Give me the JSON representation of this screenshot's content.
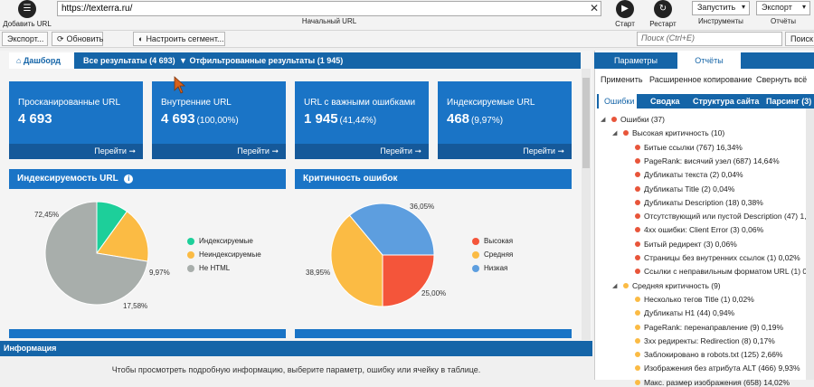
{
  "toolbar": {
    "add_url_label": "Добавить URL",
    "url_value": "https://texterra.ru/",
    "url_caption": "Начальный URL",
    "start_label": "Старт",
    "restart_label": "Рестарт",
    "run_value": "Запустить",
    "tools_caption": "Инструменты",
    "export_value": "Экспорт",
    "reports_caption": "Отчёты"
  },
  "toolbar2": {
    "export_label": "Экспорт...",
    "refresh_label": "Обновить",
    "segment_label": "Настроить сегмент...",
    "search_placeholder": "Поиск (Ctrl+E)",
    "search_right_label": "Поиск"
  },
  "tabs": [
    {
      "label": "Дашборд",
      "icon": "home-icon"
    },
    {
      "label": "Все результаты (4 693)"
    },
    {
      "label": "Отфильтрованные результаты (1 945)",
      "icon": "filter-icon"
    }
  ],
  "cards": [
    {
      "title": "Просканированные URL",
      "value": "4 693",
      "pct": "",
      "link": "Перейти ➞"
    },
    {
      "title": "Внутренние URL",
      "value": "4 693",
      "pct": "(100,00%)",
      "link": "Перейти ➞"
    },
    {
      "title": "URL с важными ошибками",
      "value": "1 945",
      "pct": "(41,44%)",
      "link": "Перейти ➞"
    },
    {
      "title": "Индексируемые URL",
      "value": "468",
      "pct": "(9,97%)",
      "link": "Перейти ➞"
    }
  ],
  "panels": {
    "indexability_title": "Индексируемость URL",
    "criticality_title": "Критичность ошибок"
  },
  "chart_data": [
    {
      "type": "pie",
      "title": "Индексируемость URL",
      "labels": [
        "Индексируемые",
        "Неиндексируемые",
        "Не HTML"
      ],
      "values": [
        9.97,
        17.58,
        72.45
      ],
      "value_labels": [
        "9,97%",
        "17,58%",
        "72,45%"
      ],
      "colors": [
        "#1dcf9a",
        "#fbbb44",
        "#a8aeab"
      ],
      "legend_position": "right"
    },
    {
      "type": "pie",
      "title": "Критичность ошибок",
      "labels": [
        "Высокая",
        "Средняя",
        "Низкая"
      ],
      "values": [
        25.0,
        38.95,
        36.05
      ],
      "value_labels": [
        "25,00%",
        "38,95%",
        "36,05%"
      ],
      "colors": [
        "#f4553a",
        "#fbbb44",
        "#5d9edf"
      ],
      "legend_position": "right"
    }
  ],
  "info": {
    "title": "Информация",
    "text": "Чтобы просмотреть подробную информацию, выберите параметр, ошибку или ячейку в таблице."
  },
  "right": {
    "tab_params": "Параметры",
    "tab_reports": "Отчёты",
    "action_apply": "Применить",
    "action_copy": "Расширенное копирование",
    "action_collapse": "Свернуть всё",
    "subtabs": [
      "Ошибки",
      "Сводка",
      "Структура сайта",
      "Парсинг (3)"
    ],
    "tree": [
      {
        "label": "Ошибки (37)",
        "level": 0,
        "color": "#e8553a",
        "twisty": "◢"
      },
      {
        "label": "Высокая критичность (10)",
        "level": 1,
        "color": "#e8553a",
        "twisty": "◢"
      },
      {
        "label": "Битые ссылки (767) 16,34%",
        "level": 2,
        "color": "#e8553a"
      },
      {
        "label": "PageRank: висячий узел (687) 14,64%",
        "level": 2,
        "color": "#e8553a"
      },
      {
        "label": "Дубликаты текста (2) 0,04%",
        "level": 2,
        "color": "#e8553a"
      },
      {
        "label": "Дубликаты Title (2) 0,04%",
        "level": 2,
        "color": "#e8553a"
      },
      {
        "label": "Дубликаты Description (18) 0,38%",
        "level": 2,
        "color": "#e8553a"
      },
      {
        "label": "Отсутствующий или пустой Description (47) 1,00%",
        "level": 2,
        "color": "#e8553a"
      },
      {
        "label": "4xx ошибки: Client Error (3) 0,06%",
        "level": 2,
        "color": "#e8553a"
      },
      {
        "label": "Битый редирект (3) 0,06%",
        "level": 2,
        "color": "#e8553a"
      },
      {
        "label": "Страницы без внутренних ссылок (1) 0,02%",
        "level": 2,
        "color": "#e8553a"
      },
      {
        "label": "Ссылки с неправильным форматом URL (1) 0,02%",
        "level": 2,
        "color": "#e8553a"
      },
      {
        "label": "Средняя критичность (9)",
        "level": 1,
        "color": "#fbbb44",
        "twisty": "◢"
      },
      {
        "label": "Несколько тегов Title (1) 0,02%",
        "level": 2,
        "color": "#fbbb44"
      },
      {
        "label": "Дубликаты H1 (44) 0,94%",
        "level": 2,
        "color": "#fbbb44"
      },
      {
        "label": "PageRank: перенаправление (9) 0,19%",
        "level": 2,
        "color": "#fbbb44"
      },
      {
        "label": "3xx редиректы: Redirection (8) 0,17%",
        "level": 2,
        "color": "#fbbb44"
      },
      {
        "label": "Заблокировано в robots.txt (125) 2,66%",
        "level": 2,
        "color": "#fbbb44"
      },
      {
        "label": "Изображения без атрибута ALT (466) 9,93%",
        "level": 2,
        "color": "#fbbb44"
      },
      {
        "label": "Макс. размер изображения (658) 14,02%",
        "level": 2,
        "color": "#fbbb44"
      }
    ]
  }
}
